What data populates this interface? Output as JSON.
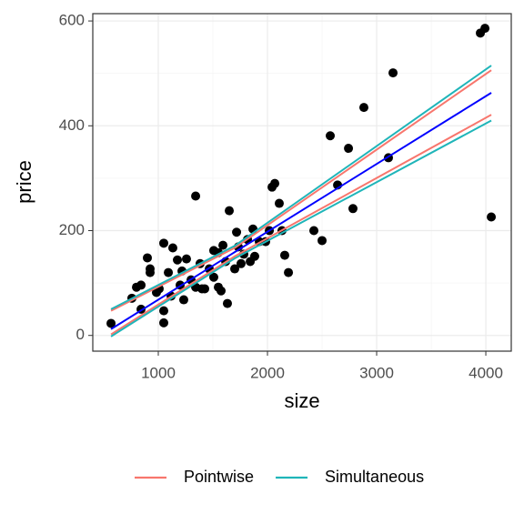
{
  "chart_data": {
    "type": "scatter",
    "x_label": "size",
    "y_label": "price",
    "x": [
      567,
      758,
      800,
      842,
      842,
      900,
      925,
      925,
      983,
      1008,
      1050,
      1050,
      1050,
      1092,
      1117,
      1133,
      1175,
      1200,
      1217,
      1233,
      1258,
      1300,
      1342,
      1342,
      1383,
      1400,
      1425,
      1467,
      1508,
      1508,
      1550,
      1550,
      1575,
      1592,
      1617,
      1633,
      1650,
      1700,
      1717,
      1733,
      1758,
      1783,
      1817,
      1842,
      1867,
      1883,
      1925,
      1983,
      2017,
      2042,
      2067,
      2108,
      2133,
      2158,
      2192,
      2425,
      2500,
      2575,
      2642,
      2742,
      2783,
      2883,
      3108,
      3150,
      3950,
      3992,
      4050
    ],
    "values": [
      23,
      71,
      92,
      96,
      50,
      148,
      127,
      120,
      82,
      89,
      176,
      47,
      24,
      120,
      75,
      167,
      144,
      96,
      123,
      68,
      146,
      106,
      266,
      92,
      137,
      89,
      89,
      127,
      162,
      111,
      158,
      92,
      85,
      172,
      141,
      61,
      238,
      127,
      197,
      169,
      137,
      155,
      183,
      141,
      203,
      151,
      179,
      179,
      200,
      283,
      290,
      252,
      200,
      153,
      120,
      200,
      181,
      381,
      287,
      357,
      242,
      435,
      339,
      501,
      577,
      586,
      226
    ],
    "point_color": "#000000",
    "line_x": [
      567,
      1700,
      4050
    ],
    "fit": {
      "color": "#0000ff",
      "values": [
        12,
        159,
        463
      ]
    },
    "series": [
      {
        "name": "Pointwise",
        "color": "#f8766d",
        "upper": [
          47,
          167,
          506
        ],
        "lower": [
          2,
          151,
          421
        ]
      },
      {
        "name": "Simultaneous",
        "color": "#1fb5b9",
        "upper": [
          50,
          171,
          515
        ],
        "lower": [
          -2,
          147,
          410
        ]
      }
    ],
    "xlim": [
      400,
      4233
    ],
    "ylim": [
      -30,
      614
    ],
    "xticks": [
      1000,
      2000,
      3000,
      4000
    ],
    "yticks": [
      0,
      200,
      400,
      600
    ],
    "grid": true,
    "legend_position": "bottom"
  }
}
